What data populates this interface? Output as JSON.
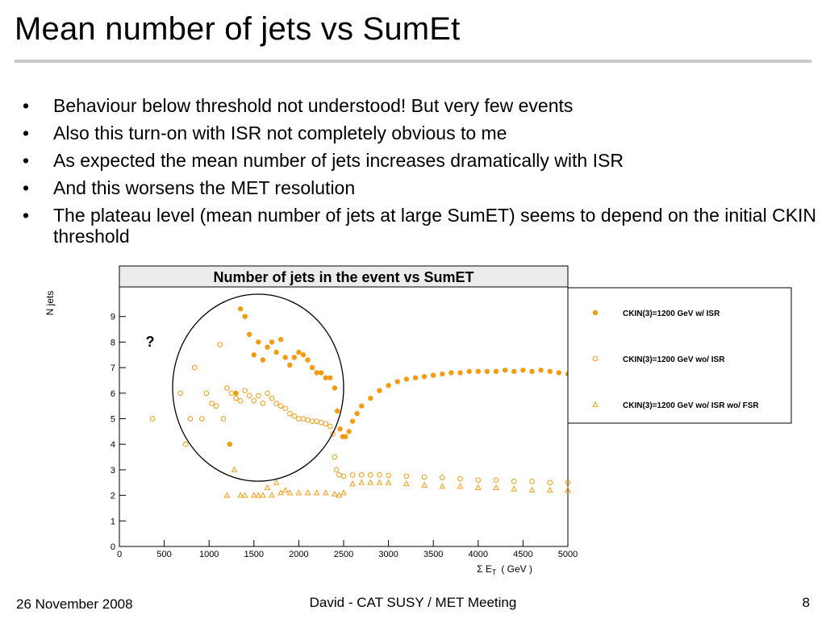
{
  "slide": {
    "title": "Mean number of jets vs SumEt",
    "bullets": [
      "Behaviour below threshold not understood! But very few events",
      "Also this turn-on with ISR not completely obvious to me",
      "As expected the mean number of jets increases dramatically with ISR",
      "And this worsens the MET resolution",
      "The plateau level (mean number of jets at large SumET) seems to depend on the initial CKIN threshold"
    ],
    "bullet_symbol": "•",
    "footer": {
      "date": "26 November 2008",
      "center": "David - CAT SUSY / MET Meeting",
      "page": "8"
    }
  },
  "chart_data": {
    "type": "scatter",
    "title": "Number of jets in the event vs SumET",
    "ylabel": "N jets",
    "xlabel": "Σ E",
    "xlabel_sub": "T",
    "xlabel_unit": "( GeV )",
    "xlim": [
      0,
      5000
    ],
    "ylim": [
      0,
      10
    ],
    "x_ticks": [
      0,
      500,
      1000,
      1500,
      2000,
      2500,
      3000,
      3500,
      4000,
      4500,
      5000
    ],
    "y_ticks": [
      0,
      1,
      2,
      3,
      4,
      5,
      6,
      7,
      8,
      9
    ],
    "annotation": "?",
    "marker_color": "#f39c12",
    "legend_placement": "right",
    "series": [
      {
        "name": "CKIN(3)=1200 GeV w/ ISR",
        "marker": "filled-star",
        "points": [
          [
            1230,
            4.0
          ],
          [
            1300,
            6.0
          ],
          [
            1350,
            9.3
          ],
          [
            1400,
            9.0
          ],
          [
            1450,
            8.3
          ],
          [
            1500,
            7.5
          ],
          [
            1550,
            8.0
          ],
          [
            1600,
            7.3
          ],
          [
            1650,
            7.8
          ],
          [
            1700,
            8.0
          ],
          [
            1750,
            7.6
          ],
          [
            1800,
            8.1
          ],
          [
            1850,
            7.4
          ],
          [
            1900,
            7.1
          ],
          [
            1950,
            7.4
          ],
          [
            2000,
            7.6
          ],
          [
            2050,
            7.5
          ],
          [
            2100,
            7.3
          ],
          [
            2150,
            7.0
          ],
          [
            2200,
            6.8
          ],
          [
            2250,
            6.8
          ],
          [
            2300,
            6.6
          ],
          [
            2350,
            6.6
          ],
          [
            2400,
            6.2
          ],
          [
            2430,
            5.3
          ],
          [
            2460,
            4.6
          ],
          [
            2490,
            4.3
          ],
          [
            2520,
            4.3
          ],
          [
            2560,
            4.5
          ],
          [
            2600,
            4.9
          ],
          [
            2650,
            5.2
          ],
          [
            2700,
            5.5
          ],
          [
            2800,
            5.8
          ],
          [
            2900,
            6.1
          ],
          [
            3000,
            6.3
          ],
          [
            3100,
            6.45
          ],
          [
            3200,
            6.55
          ],
          [
            3300,
            6.6
          ],
          [
            3400,
            6.65
          ],
          [
            3500,
            6.7
          ],
          [
            3600,
            6.75
          ],
          [
            3700,
            6.8
          ],
          [
            3800,
            6.8
          ],
          [
            3900,
            6.85
          ],
          [
            4000,
            6.85
          ],
          [
            4100,
            6.85
          ],
          [
            4200,
            6.85
          ],
          [
            4300,
            6.9
          ],
          [
            4400,
            6.85
          ],
          [
            4500,
            6.9
          ],
          [
            4600,
            6.85
          ],
          [
            4700,
            6.9
          ],
          [
            4800,
            6.85
          ],
          [
            4900,
            6.8
          ],
          [
            5000,
            6.75
          ]
        ]
      },
      {
        "name": "CKIN(3)=1200 GeV wo/ ISR",
        "marker": "open-circle",
        "points": [
          [
            370,
            5.0
          ],
          [
            680,
            6.0
          ],
          [
            740,
            4.0
          ],
          [
            790,
            5.0
          ],
          [
            840,
            7.0
          ],
          [
            920,
            5.0
          ],
          [
            970,
            6.0
          ],
          [
            1030,
            5.6
          ],
          [
            1080,
            5.5
          ],
          [
            1120,
            7.9
          ],
          [
            1160,
            5.0
          ],
          [
            1200,
            6.2
          ],
          [
            1250,
            6.0
          ],
          [
            1300,
            5.8
          ],
          [
            1350,
            5.7
          ],
          [
            1400,
            6.1
          ],
          [
            1450,
            5.9
          ],
          [
            1500,
            5.7
          ],
          [
            1550,
            5.9
          ],
          [
            1600,
            5.6
          ],
          [
            1650,
            6.0
          ],
          [
            1700,
            5.8
          ],
          [
            1750,
            5.6
          ],
          [
            1800,
            5.5
          ],
          [
            1850,
            5.4
          ],
          [
            1900,
            5.2
          ],
          [
            1950,
            5.1
          ],
          [
            2000,
            5.0
          ],
          [
            2050,
            5.0
          ],
          [
            2100,
            4.95
          ],
          [
            2150,
            4.9
          ],
          [
            2200,
            4.9
          ],
          [
            2250,
            4.85
          ],
          [
            2300,
            4.8
          ],
          [
            2350,
            4.7
          ],
          [
            2380,
            4.4
          ],
          [
            2400,
            3.5
          ],
          [
            2420,
            3.0
          ],
          [
            2450,
            2.8
          ],
          [
            2500,
            2.75
          ],
          [
            2600,
            2.8
          ],
          [
            2700,
            2.8
          ],
          [
            2800,
            2.8
          ],
          [
            2900,
            2.8
          ],
          [
            3000,
            2.78
          ],
          [
            3200,
            2.75
          ],
          [
            3400,
            2.72
          ],
          [
            3600,
            2.7
          ],
          [
            3800,
            2.65
          ],
          [
            4000,
            2.6
          ],
          [
            4200,
            2.6
          ],
          [
            4400,
            2.55
          ],
          [
            4600,
            2.55
          ],
          [
            4800,
            2.5
          ],
          [
            5000,
            2.5
          ]
        ]
      },
      {
        "name": "CKIN(3)=1200 GeV wo/ ISR wo/ FSR",
        "marker": "open-triangle",
        "points": [
          [
            1200,
            2.0
          ],
          [
            1280,
            3.0
          ],
          [
            1350,
            2.0
          ],
          [
            1400,
            2.0
          ],
          [
            1500,
            2.0
          ],
          [
            1550,
            2.0
          ],
          [
            1600,
            2.0
          ],
          [
            1650,
            2.3
          ],
          [
            1700,
            2.0
          ],
          [
            1750,
            2.5
          ],
          [
            1800,
            2.1
          ],
          [
            1850,
            2.2
          ],
          [
            1900,
            2.1
          ],
          [
            2000,
            2.1
          ],
          [
            2100,
            2.1
          ],
          [
            2200,
            2.1
          ],
          [
            2300,
            2.1
          ],
          [
            2400,
            2.05
          ],
          [
            2450,
            2.0
          ],
          [
            2500,
            2.1
          ],
          [
            2600,
            2.45
          ],
          [
            2700,
            2.5
          ],
          [
            2800,
            2.5
          ],
          [
            2900,
            2.5
          ],
          [
            3000,
            2.5
          ],
          [
            3200,
            2.45
          ],
          [
            3400,
            2.4
          ],
          [
            3600,
            2.35
          ],
          [
            3800,
            2.35
          ],
          [
            4000,
            2.3
          ],
          [
            4200,
            2.3
          ],
          [
            4400,
            2.25
          ],
          [
            4600,
            2.2
          ],
          [
            4800,
            2.2
          ],
          [
            5000,
            2.2
          ]
        ]
      }
    ]
  }
}
